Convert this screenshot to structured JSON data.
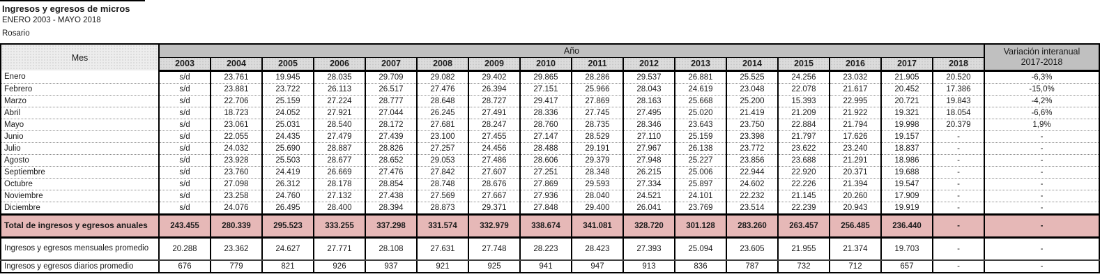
{
  "title": "Ingresos y egresos de micros",
  "subtitle": "ENERO 2003 - MAYO 2018",
  "region": "Rosario",
  "colors": {
    "header_gray": "#c0c0c0",
    "year_cell_gray": "#dcdcdc",
    "mes_cell_gray": "#ededed",
    "total_pink": "#e6b8b7",
    "border_black": "#000000"
  },
  "table": {
    "mes_header": "Mes",
    "year_group_header": "Año",
    "variation_header_line1": "Variación interanual",
    "variation_header_line2": "2017-2018",
    "years": [
      "2003",
      "2004",
      "2005",
      "2006",
      "2007",
      "2008",
      "2009",
      "2010",
      "2011",
      "2012",
      "2013",
      "2014",
      "2015",
      "2016",
      "2017",
      "2018"
    ],
    "rows": [
      {
        "label": "Enero",
        "type": "month",
        "values": [
          "s/d",
          "23.761",
          "19.945",
          "28.035",
          "29.709",
          "29.082",
          "29.402",
          "29.865",
          "28.286",
          "29.537",
          "26.881",
          "25.525",
          "24.256",
          "23.032",
          "21.905",
          "20.520"
        ],
        "variation": "-6,3%"
      },
      {
        "label": "Febrero",
        "type": "month",
        "values": [
          "s/d",
          "23.881",
          "23.722",
          "26.113",
          "26.517",
          "27.476",
          "26.394",
          "27.151",
          "25.966",
          "28.043",
          "24.619",
          "23.048",
          "22.078",
          "21.617",
          "20.452",
          "17.386"
        ],
        "variation": "-15,0%"
      },
      {
        "label": "Marzo",
        "type": "month",
        "values": [
          "s/d",
          "22.706",
          "25.159",
          "27.224",
          "28.777",
          "28.648",
          "28.727",
          "29.417",
          "27.869",
          "28.163",
          "25.668",
          "25.200",
          "15.393",
          "22.995",
          "20.721",
          "19.843"
        ],
        "variation": "-4,2%"
      },
      {
        "label": "Abril",
        "type": "month",
        "values": [
          "s/d",
          "18.723",
          "24.052",
          "27.921",
          "27.044",
          "26.245",
          "27.491",
          "28.336",
          "27.745",
          "27.495",
          "25.020",
          "21.419",
          "21.209",
          "21.922",
          "19.321",
          "18.054"
        ],
        "variation": "-6,6%"
      },
      {
        "label": "Mayo",
        "type": "month",
        "values": [
          "s/d",
          "23.061",
          "25.031",
          "28.540",
          "28.172",
          "27.681",
          "28.247",
          "28.760",
          "28.735",
          "28.346",
          "23.643",
          "23.750",
          "22.884",
          "21.794",
          "19.998",
          "20.379"
        ],
        "variation": "1,9%"
      },
      {
        "label": "Junio",
        "type": "month",
        "values": [
          "s/d",
          "22.055",
          "24.435",
          "27.479",
          "27.439",
          "23.100",
          "27.455",
          "27.147",
          "28.529",
          "27.110",
          "25.159",
          "23.398",
          "21.797",
          "17.626",
          "19.157",
          "-"
        ],
        "variation": "-"
      },
      {
        "label": "Julio",
        "type": "month",
        "values": [
          "s/d",
          "24.032",
          "25.690",
          "28.887",
          "28.826",
          "27.257",
          "24.456",
          "28.488",
          "29.191",
          "27.967",
          "26.138",
          "23.772",
          "23.622",
          "23.240",
          "18.837",
          "-"
        ],
        "variation": "-"
      },
      {
        "label": "Agosto",
        "type": "month",
        "values": [
          "s/d",
          "23.928",
          "25.503",
          "28.677",
          "28.652",
          "29.053",
          "27.486",
          "28.606",
          "29.379",
          "27.948",
          "25.227",
          "23.856",
          "23.688",
          "21.291",
          "18.986",
          "-"
        ],
        "variation": "-"
      },
      {
        "label": "Septiembre",
        "type": "month",
        "values": [
          "s/d",
          "23.760",
          "24.419",
          "26.669",
          "27.476",
          "27.842",
          "27.607",
          "27.251",
          "28.348",
          "26.215",
          "25.006",
          "22.944",
          "22.920",
          "20.371",
          "19.688",
          "-"
        ],
        "variation": "-"
      },
      {
        "label": "Octubre",
        "type": "month",
        "values": [
          "s/d",
          "27.098",
          "26.312",
          "28.178",
          "28.854",
          "28.748",
          "28.676",
          "27.869",
          "29.593",
          "27.334",
          "25.897",
          "24.602",
          "22.226",
          "21.394",
          "19.547",
          "-"
        ],
        "variation": "-"
      },
      {
        "label": "Noviembre",
        "type": "month",
        "values": [
          "s/d",
          "23.258",
          "24.760",
          "27.132",
          "27.438",
          "27.569",
          "27.667",
          "27.936",
          "28.040",
          "24.521",
          "24.101",
          "22.232",
          "21.145",
          "20.260",
          "17.909",
          "-"
        ],
        "variation": "-"
      },
      {
        "label": "Diciembre",
        "type": "month",
        "values": [
          "s/d",
          "24.076",
          "26.495",
          "28.400",
          "28.394",
          "28.873",
          "29.371",
          "27.848",
          "29.400",
          "26.041",
          "23.769",
          "23.514",
          "22.239",
          "20.943",
          "19.919",
          "-"
        ],
        "variation": "-"
      },
      {
        "label": "Total de ingresos y egresos anuales",
        "type": "total",
        "values": [
          "243.455",
          "280.339",
          "295.523",
          "333.255",
          "337.298",
          "331.574",
          "332.979",
          "338.674",
          "341.081",
          "328.720",
          "301.128",
          "283.260",
          "263.457",
          "256.485",
          "236.440",
          "-"
        ],
        "variation": "-"
      },
      {
        "label": "Ingresos y egresos mensuales promedio",
        "type": "avg2",
        "values": [
          "20.288",
          "23.362",
          "24.627",
          "27.771",
          "28.108",
          "27.631",
          "27.748",
          "28.223",
          "28.423",
          "27.393",
          "25.094",
          "23.605",
          "21.955",
          "21.374",
          "19.703",
          "-"
        ],
        "variation": "-"
      },
      {
        "label": "Ingresos y egresos diarios promedio",
        "type": "avg1",
        "values": [
          "676",
          "779",
          "821",
          "926",
          "937",
          "921",
          "925",
          "941",
          "947",
          "913",
          "836",
          "787",
          "732",
          "712",
          "657",
          "-"
        ],
        "variation": "-"
      }
    ]
  }
}
